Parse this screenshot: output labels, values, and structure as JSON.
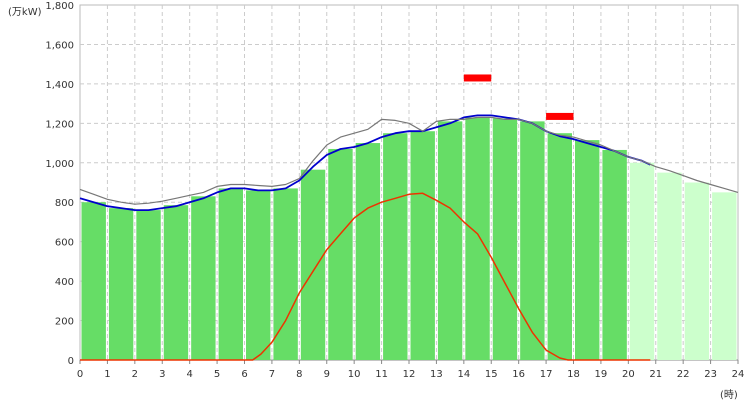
{
  "chart_data": {
    "type": "bar",
    "ylabel": "(万kW)",
    "xlabel": "(時)",
    "ylim": [
      0,
      1800
    ],
    "xlim": [
      0,
      24
    ],
    "yticks": [
      0,
      200,
      400,
      600,
      800,
      1000,
      1200,
      1400,
      1600,
      1800
    ],
    "ytick_labels": [
      "0",
      "200",
      "400",
      "600",
      "800",
      "1,000",
      "1,200",
      "1,400",
      "1,600",
      "1,800"
    ],
    "xticks": [
      0,
      1,
      2,
      3,
      4,
      5,
      6,
      7,
      8,
      9,
      10,
      11,
      12,
      13,
      14,
      15,
      16,
      17,
      18,
      19,
      20,
      21,
      22,
      23,
      24
    ],
    "xtick_labels": [
      "0",
      "1",
      "2",
      "3",
      "4",
      "5",
      "6",
      "7",
      "8",
      "9",
      "10",
      "11",
      "12",
      "13",
      "14",
      "15",
      "16",
      "17",
      "18",
      "19",
      "20",
      "21",
      "22",
      "23",
      "24"
    ],
    "grid": true,
    "colors": {
      "actual_bar": "#66dd66",
      "forecast_bar": "#ccffcc",
      "demand_line": "#0000cc",
      "previous_line": "#777777",
      "solar_line": "#ee3300",
      "peak_marker": "#ff0000"
    },
    "bars": {
      "hours": [
        0,
        1,
        2,
        3,
        4,
        5,
        6,
        7,
        8,
        9,
        10,
        11,
        12,
        13,
        14,
        15,
        16,
        17,
        18,
        19,
        20,
        21,
        22,
        23
      ],
      "values": [
        800,
        770,
        760,
        785,
        830,
        870,
        860,
        870,
        965,
        1070,
        1100,
        1150,
        1160,
        1210,
        1230,
        1225,
        1210,
        1150,
        1115,
        1065,
        1000,
        950,
        900,
        850
      ],
      "actual_count": 20
    },
    "series": [
      {
        "x": [
          0,
          0.5,
          1,
          1.5,
          2,
          2.5,
          3,
          3.5,
          4,
          4.5,
          5,
          5.5,
          6,
          6.5,
          7,
          7.5,
          8,
          8.5,
          9,
          9.5,
          10,
          10.5,
          11,
          11.5,
          12,
          12.5,
          13,
          13.5,
          14,
          14.5,
          15,
          15.5,
          16,
          16.5,
          17,
          17.5,
          18,
          18.5,
          19,
          19.5,
          20,
          20.5,
          20.8
        ],
        "y": [
          820,
          800,
          780,
          770,
          760,
          760,
          770,
          780,
          800,
          820,
          850,
          870,
          870,
          860,
          860,
          870,
          910,
          980,
          1040,
          1070,
          1080,
          1100,
          1130,
          1150,
          1160,
          1160,
          1180,
          1200,
          1230,
          1240,
          1240,
          1230,
          1220,
          1200,
          1160,
          1135,
          1120,
          1100,
          1080,
          1060,
          1030,
          1010,
          990
        ]
      },
      {
        "x": [
          0,
          0.5,
          1,
          1.5,
          2,
          2.5,
          3,
          3.5,
          4,
          4.5,
          5,
          5.5,
          6,
          6.5,
          7,
          7.5,
          8,
          8.5,
          9,
          9.5,
          10,
          10.5,
          11,
          11.5,
          12,
          12.5,
          13,
          13.5,
          14,
          14.5,
          15,
          15.5,
          16,
          16.5,
          17,
          17.5,
          18,
          18.5,
          19,
          19.5,
          20,
          20.5,
          21,
          21.5,
          22,
          22.5,
          23,
          23.5,
          24
        ],
        "y": [
          865,
          840,
          815,
          800,
          790,
          795,
          805,
          820,
          835,
          850,
          880,
          890,
          890,
          885,
          880,
          890,
          920,
          1010,
          1090,
          1130,
          1150,
          1170,
          1220,
          1215,
          1200,
          1160,
          1210,
          1220,
          1220,
          1230,
          1230,
          1220,
          1220,
          1200,
          1160,
          1140,
          1130,
          1110,
          1090,
          1060,
          1030,
          1010,
          980,
          960,
          935,
          910,
          890,
          870,
          850
        ]
      },
      {
        "x": [
          0,
          6.3,
          6.6,
          7,
          7.5,
          8,
          8.5,
          9,
          9.5,
          10,
          10.5,
          11,
          11.5,
          12,
          12.5,
          13,
          13.5,
          14,
          14.5,
          15,
          15.5,
          16,
          16.5,
          17,
          17.5,
          17.8,
          18,
          20.8
        ],
        "y": [
          0,
          0,
          30,
          90,
          200,
          340,
          450,
          560,
          640,
          720,
          770,
          800,
          820,
          840,
          845,
          810,
          770,
          700,
          640,
          520,
          390,
          260,
          140,
          50,
          10,
          0,
          0,
          0
        ]
      }
    ],
    "peak_markers": [
      {
        "x_start": 14.0,
        "x_end": 15.0,
        "y": 1430
      },
      {
        "x_start": 17.0,
        "x_end": 18.0,
        "y": 1235
      }
    ]
  }
}
